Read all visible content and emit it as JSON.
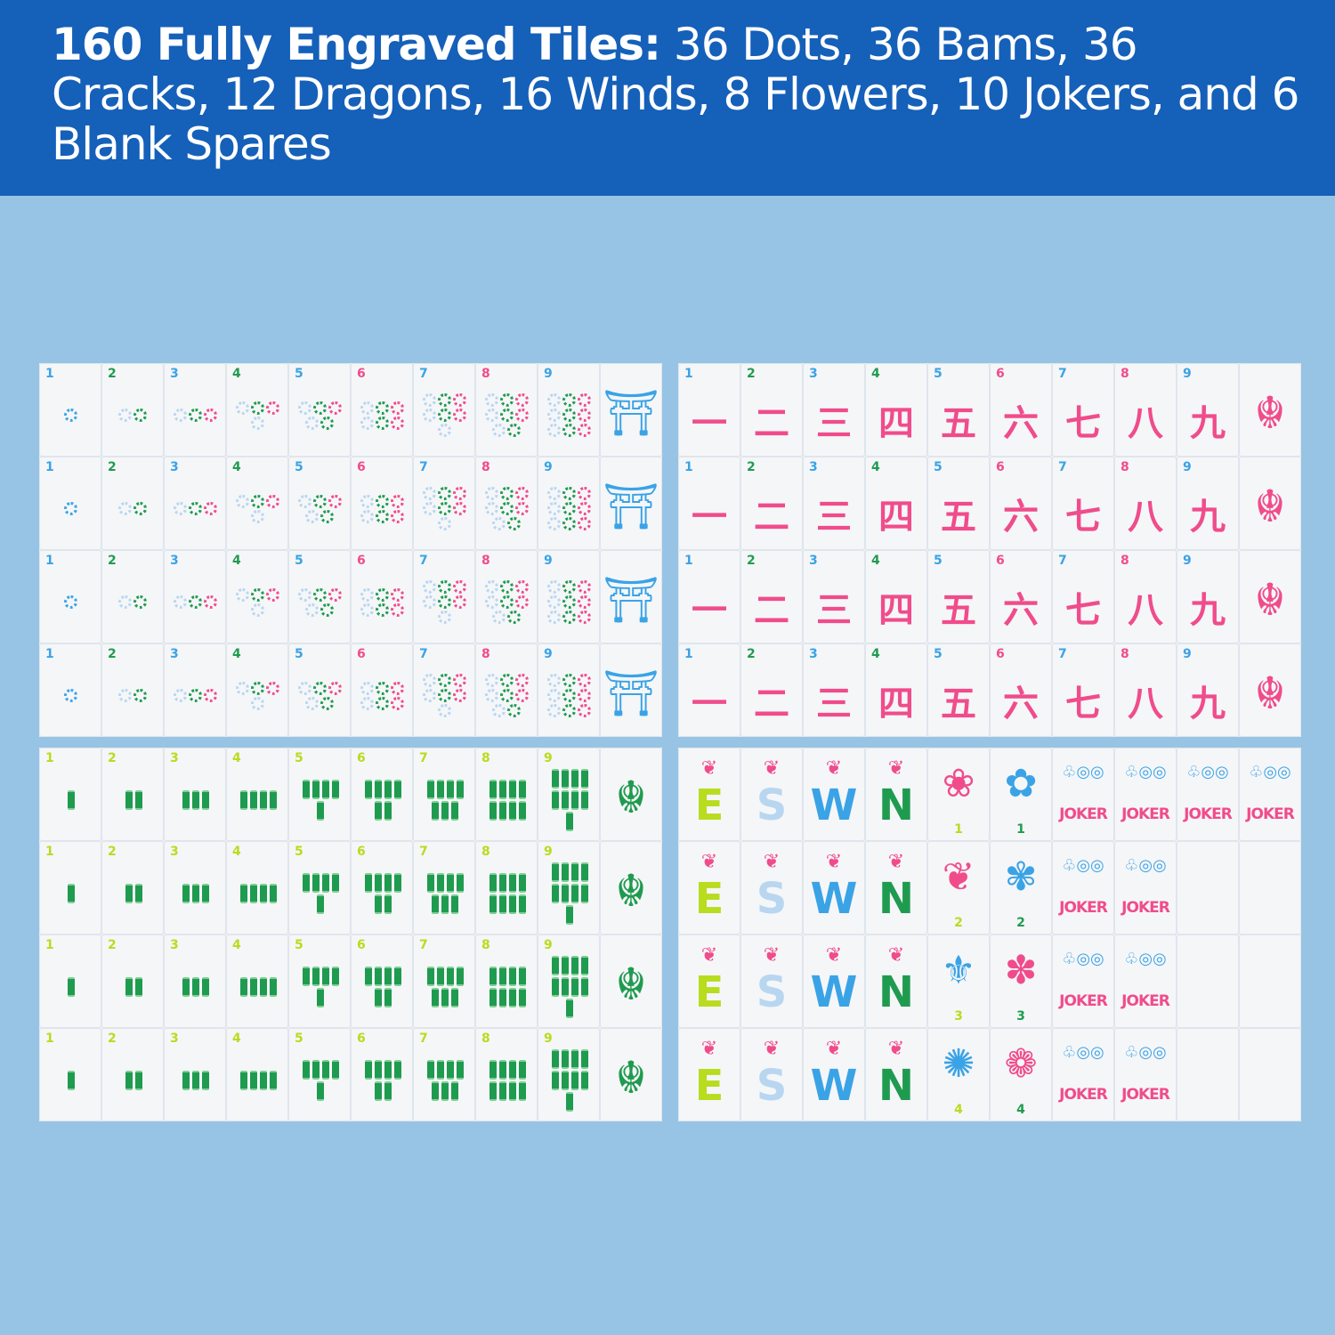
{
  "header": {
    "bold": "160 Fully Engraved Tiles:",
    "rest": " 36 Dots, 36 Bams, 36 Cracks, 12 Dragons, 16 Winds, 8 Flowers, 10 Jokers, and 6 Blank Spares"
  },
  "colors": {
    "header_bg": "#1560b9",
    "background": "#97c4e4",
    "pink": "#f04c8c",
    "green": "#1f9b4f",
    "blue": "#3aa3e6",
    "lime": "#b8dc1e",
    "pale_blue": "#b9d6f0"
  },
  "crack_chars": [
    "一",
    "二",
    "三",
    "四",
    "五",
    "六",
    "七",
    "八",
    "九"
  ],
  "winds": [
    {
      "letter": "E",
      "color": "#b8dc1e"
    },
    {
      "letter": "S",
      "color": "#b9d6f0"
    },
    {
      "letter": "W",
      "color": "#3aa3e6"
    },
    {
      "letter": "N",
      "color": "#1f9b4f"
    }
  ],
  "joker_label": "JOKER",
  "blocks": [
    {
      "name": "dots-block",
      "suit": "dots",
      "rows": 4,
      "dragon": {
        "icon": "pavilion-icon",
        "glyph": "⛩",
        "color": "#3aa3e6"
      }
    },
    {
      "name": "cracks-block",
      "suit": "cracks",
      "rows": 4,
      "dragon": {
        "icon": "red-dragon-icon",
        "glyph": "☬",
        "color": "#f04c8c"
      }
    },
    {
      "name": "bams-block",
      "suit": "bams",
      "rows": 4,
      "dragon": {
        "icon": "green-dragon-icon",
        "glyph": "☬",
        "color": "#1f9b4f"
      }
    },
    {
      "name": "honors-block",
      "suit": "honors",
      "rows": [
        {
          "flowers": [
            {
              "n": "1",
              "glyph": "❀",
              "color": "#f04c8c",
              "numColor": "#b8dc1e"
            },
            {
              "n": "1",
              "glyph": "✿",
              "color": "#3aa3e6",
              "numColor": "#1f9b4f"
            }
          ],
          "jokers": 4,
          "blanks": 0
        },
        {
          "flowers": [
            {
              "n": "2",
              "glyph": "❦",
              "color": "#f04c8c",
              "numColor": "#b8dc1e"
            },
            {
              "n": "2",
              "glyph": "✾",
              "color": "#3aa3e6",
              "numColor": "#1f9b4f"
            }
          ],
          "jokers": 2,
          "blanks": 2
        },
        {
          "flowers": [
            {
              "n": "3",
              "glyph": "⚜",
              "color": "#3aa3e6",
              "numColor": "#b8dc1e"
            },
            {
              "n": "3",
              "glyph": "✽",
              "color": "#f04c8c",
              "numColor": "#1f9b4f"
            }
          ],
          "jokers": 2,
          "blanks": 2
        },
        {
          "flowers": [
            {
              "n": "4",
              "glyph": "✺",
              "color": "#3aa3e6",
              "numColor": "#b8dc1e"
            },
            {
              "n": "4",
              "glyph": "❁",
              "color": "#f04c8c",
              "numColor": "#1f9b4f"
            }
          ],
          "jokers": 2,
          "blanks": 2
        }
      ]
    }
  ]
}
